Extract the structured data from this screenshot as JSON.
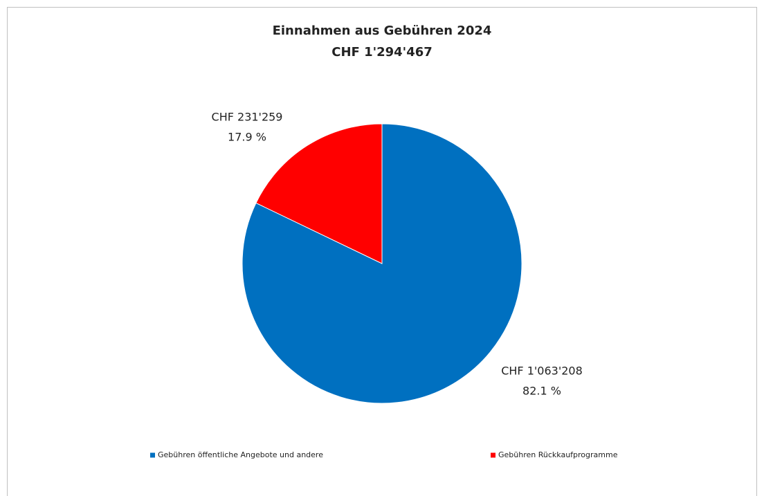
{
  "chart_data": {
    "type": "pie",
    "title": "Einnahmen aus Gebühren 2024",
    "subtitle": "CHF 1'294'467",
    "categories": [
      "Gebühren öffentliche Angebote und andere",
      "Gebühren Rückkaufprogramme"
    ],
    "values": [
      1063208,
      231259
    ],
    "value_labels": [
      "CHF 1'063'208",
      "CHF 231'259"
    ],
    "percent_labels": [
      "82.1 %",
      "17.9 %"
    ],
    "colors": [
      "#0070c0",
      "#ff0000"
    ],
    "legend": "bottom"
  }
}
